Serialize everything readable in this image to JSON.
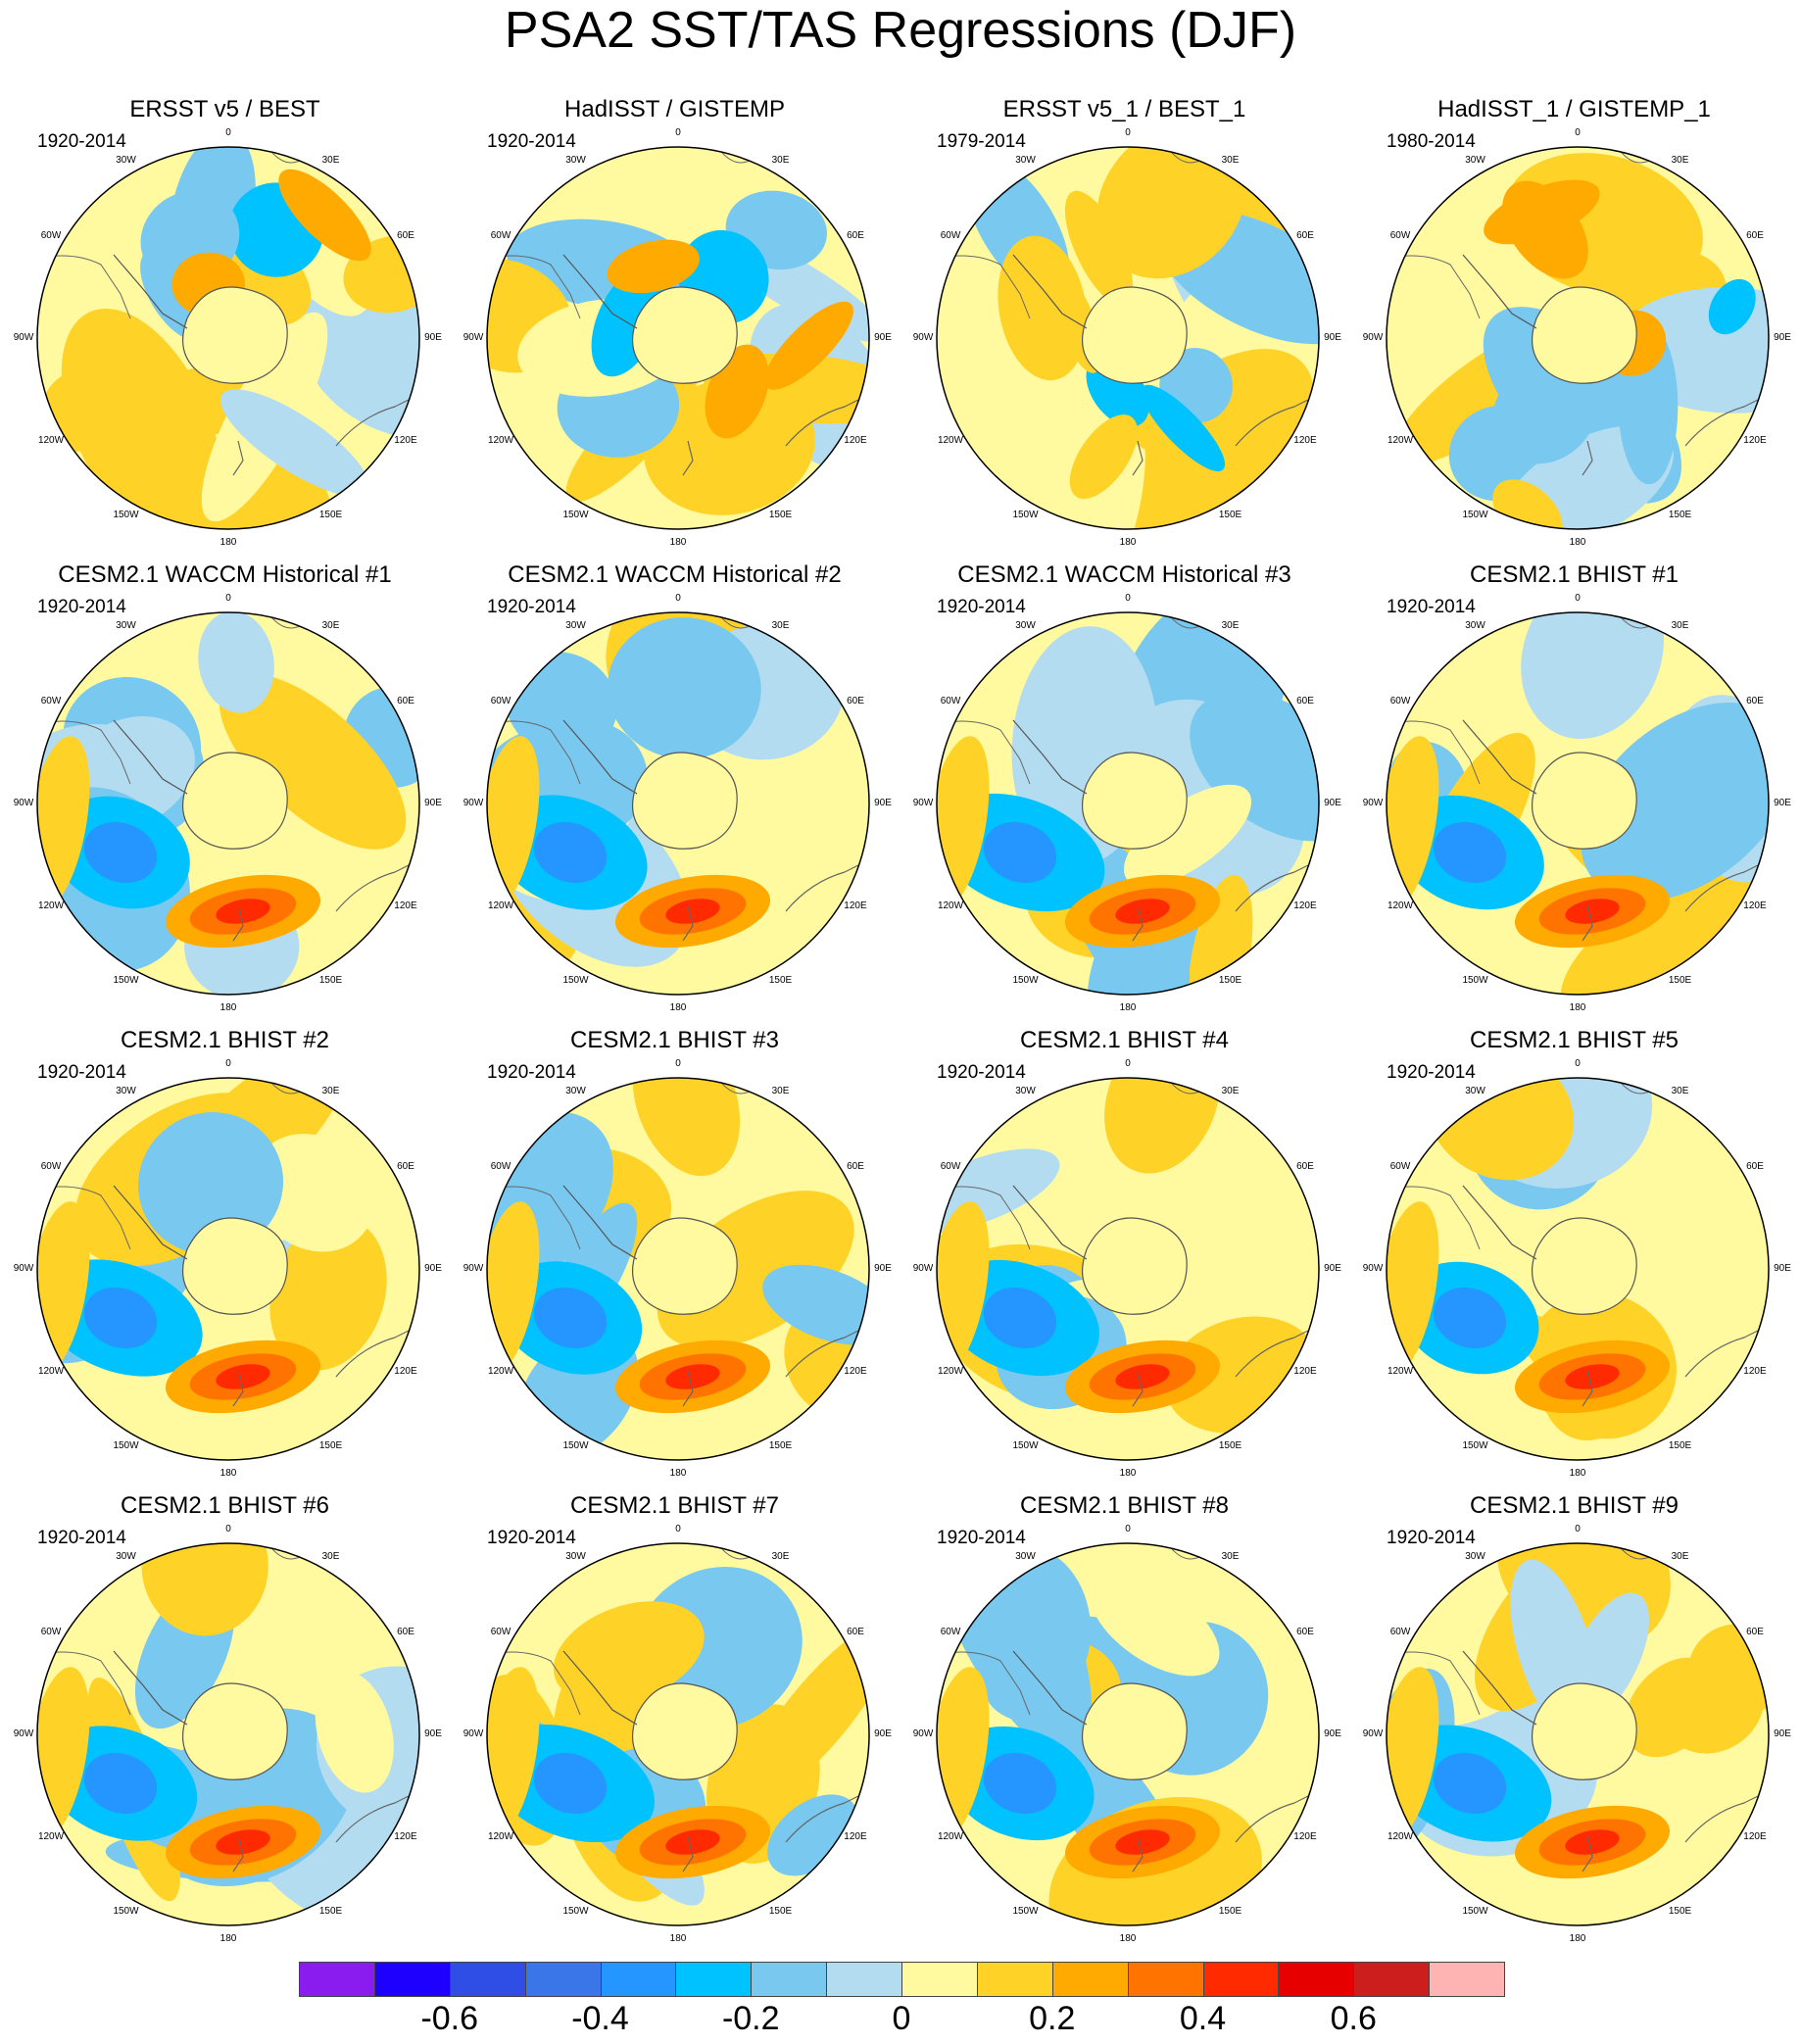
{
  "title": "PSA2 SST/TAS Regressions (DJF)",
  "longitude_labels": [
    "0",
    "30E",
    "60E",
    "90E",
    "120E",
    "150E",
    "180",
    "150W",
    "120W",
    "90W",
    "60W",
    "30W"
  ],
  "panels": [
    {
      "title": "ERSST v5 / BEST",
      "period": "1920-2014",
      "pattern": "obs1"
    },
    {
      "title": "HadISST / GISTEMP",
      "period": "1920-2014",
      "pattern": "obs2"
    },
    {
      "title": "ERSST v5_1 / BEST_1",
      "period": "1979-2014",
      "pattern": "obs3"
    },
    {
      "title": "HadISST_1 / GISTEMP_1",
      "period": "1980-2014",
      "pattern": "obs4"
    },
    {
      "title": "CESM2.1 WACCM Historical #1",
      "period": "1920-2014",
      "pattern": "model"
    },
    {
      "title": "CESM2.1 WACCM Historical #2",
      "period": "1920-2014",
      "pattern": "model"
    },
    {
      "title": "CESM2.1 WACCM Historical #3",
      "period": "1920-2014",
      "pattern": "model"
    },
    {
      "title": "CESM2.1 BHIST #1",
      "period": "1920-2014",
      "pattern": "model"
    },
    {
      "title": "CESM2.1 BHIST #2",
      "period": "1920-2014",
      "pattern": "model"
    },
    {
      "title": "CESM2.1 BHIST #3",
      "period": "1920-2014",
      "pattern": "model"
    },
    {
      "title": "CESM2.1 BHIST #4",
      "period": "1920-2014",
      "pattern": "model"
    },
    {
      "title": "CESM2.1 BHIST #5",
      "period": "1920-2014",
      "pattern": "model"
    },
    {
      "title": "CESM2.1 BHIST #6",
      "period": "1920-2014",
      "pattern": "model"
    },
    {
      "title": "CESM2.1 BHIST #7",
      "period": "1920-2014",
      "pattern": "model"
    },
    {
      "title": "CESM2.1 BHIST #8",
      "period": "1920-2014",
      "pattern": "model"
    },
    {
      "title": "CESM2.1 BHIST #9",
      "period": "1920-2014",
      "pattern": "model"
    }
  ],
  "colorbar": {
    "colors": [
      "#8a1cf0",
      "#1e00ff",
      "#2e4ee6",
      "#3a76e8",
      "#2596ff",
      "#00c2ff",
      "#78c8f0",
      "#b4dcf0",
      "#fffaa0",
      "#ffd227",
      "#ffaa00",
      "#ff7300",
      "#ff2a00",
      "#e60000",
      "#cd1e1e",
      "#ffb4b4"
    ],
    "tick_values": [
      -0.6,
      -0.4,
      -0.2,
      0,
      0.2,
      0.4,
      0.6
    ],
    "tick_labels": [
      "-0.6",
      "-0.4",
      "-0.2",
      "0",
      "0.2",
      "0.4",
      "0.6"
    ]
  }
}
